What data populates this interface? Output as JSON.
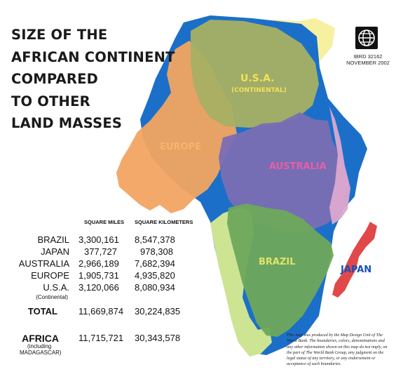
{
  "title_lines": [
    "SIZE OF THE",
    "AFRICAN CONTINENT",
    "COMPARED",
    "TO  OTHER",
    "LAND MASSES"
  ],
  "map_code": [
    "IBRD 32162",
    "NOVEMBER 2002"
  ],
  "colors": {
    "africa": "#1b6fc9",
    "usa": "#a7b063",
    "europe": "#f2a461",
    "australia": "#7a6eb3",
    "brazil": "#6ea85b",
    "japan": "#e0484a",
    "yellow_land": "#f6f0a0",
    "light_green_land": "#cde493",
    "pink_land": "#dca8cf"
  },
  "region_labels": {
    "usa": "U.S.A.",
    "usa_sub": "(CONTINENTAL)",
    "europe": "EUROPE",
    "australia": "AUSTRALIA",
    "brazil": "BRAZIL",
    "japan": "JAPAN"
  },
  "table": {
    "headers": [
      "SQUARE MILES",
      "SQUARE KILOMETERS"
    ],
    "rows": [
      {
        "name": "BRAZIL",
        "miles": "3,300,161",
        "km": "8,547,378"
      },
      {
        "name": "JAPAN",
        "miles": "377,727",
        "km": "978,308"
      },
      {
        "name": "AUSTRALIA",
        "miles": "2,966,189",
        "km": "7,682,394"
      },
      {
        "name": "EUROPE",
        "miles": "1,905,731",
        "km": "4,935,820"
      },
      {
        "name": "U.S.A.",
        "miles": "3,120,066",
        "km": "8,080,934"
      }
    ],
    "usa_note": "(Continental)",
    "total": {
      "name": "TOTAL",
      "miles": "11,669,874",
      "km": "30,224,835"
    },
    "africa": {
      "name": "AFRICA",
      "miles": "11,715,721",
      "km": "30,343,578"
    },
    "africa_note": [
      "(including",
      "MADAGASCAR)"
    ]
  },
  "disclaimer": "This map was produced by the Map Design Unit of The World Bank. The boundaries, colors, denominations and any other information shown on this map do not imply, on the part of The World Bank Group, any judgment on the legal status of any territory, or any endorsement or acceptance of such boundaries."
}
